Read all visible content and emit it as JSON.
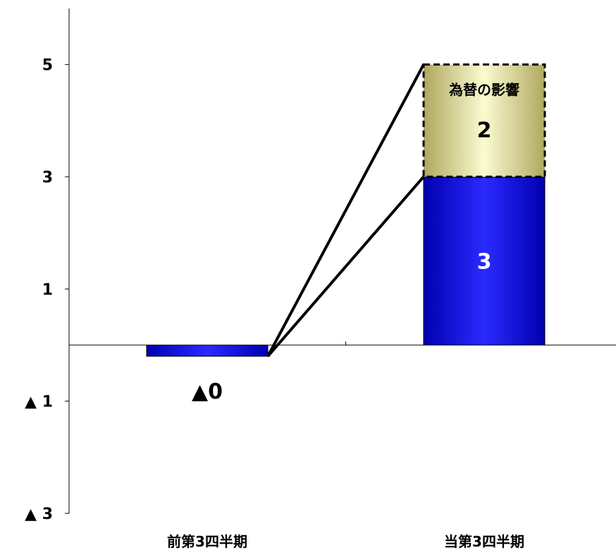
{
  "chart_data": {
    "type": "bar",
    "stacked": true,
    "title": "",
    "xlabel": "",
    "ylabel": "",
    "ylim": [
      -3,
      6
    ],
    "yticks": [
      -3,
      -1,
      1,
      3,
      5
    ],
    "ytick_labels": [
      "▲ 3",
      "▲ 1",
      "1",
      "3",
      "5"
    ],
    "grid": false,
    "legend": "none",
    "categories": [
      "前第3四半期",
      "当第3四半期"
    ],
    "series": [
      {
        "values": [
          -0.2,
          3
        ],
        "color": "#1010d0"
      },
      {
        "values": [
          0,
          2
        ],
        "color": "#e8e8a8"
      }
    ],
    "data_labels": [
      {
        "category_index": 0,
        "series_index": 0,
        "text": "▲0",
        "color": "#000000"
      },
      {
        "category_index": 1,
        "series_index": 0,
        "text": "3",
        "color": "#ffffff"
      },
      {
        "category_index": 1,
        "series_index": 1,
        "text": "2",
        "color": "#000000"
      }
    ],
    "annotations": [
      {
        "category_index": 1,
        "series_index": 1,
        "text": "為替の影響"
      }
    ]
  }
}
